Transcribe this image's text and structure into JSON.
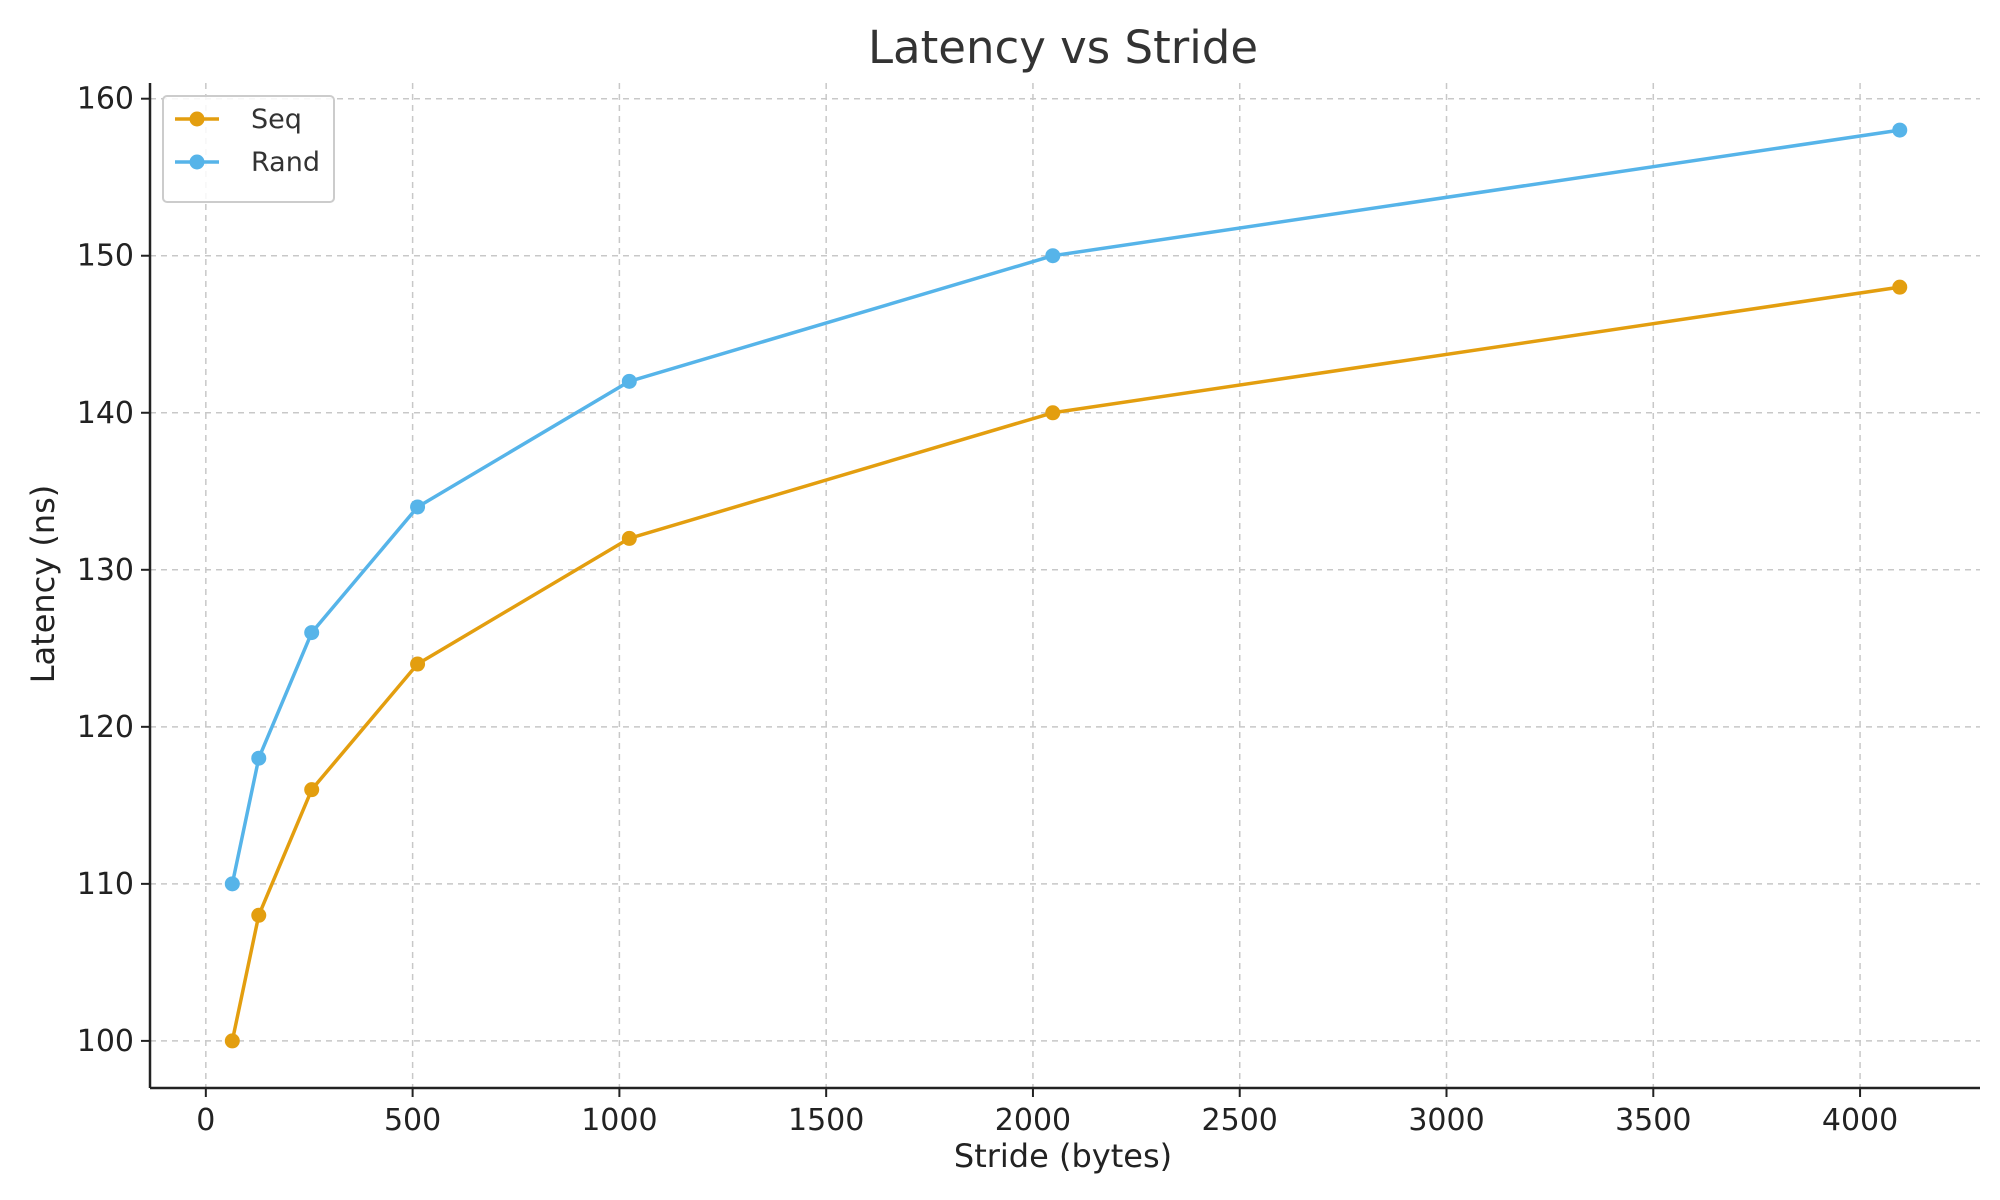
{
  "chart_data": {
    "type": "line",
    "title": "Latency vs Stride",
    "xlabel": "Stride (bytes)",
    "ylabel": "Latency (ns)",
    "xlim": [
      -135,
      4290
    ],
    "ylim": [
      97,
      161
    ],
    "xticks": [
      0,
      500,
      1000,
      1500,
      2000,
      2500,
      3000,
      3500,
      4000
    ],
    "yticks": [
      100,
      110,
      120,
      130,
      140,
      150,
      160
    ],
    "grid": true,
    "legend_position": "top-left",
    "x": [
      64,
      128,
      256,
      512,
      1024,
      2048,
      4096
    ],
    "series": [
      {
        "name": "Seq",
        "color": "#e39e0f",
        "values": [
          100,
          108,
          116,
          124,
          132,
          140,
          148
        ]
      },
      {
        "name": "Rand",
        "color": "#56b4e9",
        "values": [
          110,
          118,
          126,
          134,
          142,
          150,
          158
        ]
      }
    ]
  }
}
